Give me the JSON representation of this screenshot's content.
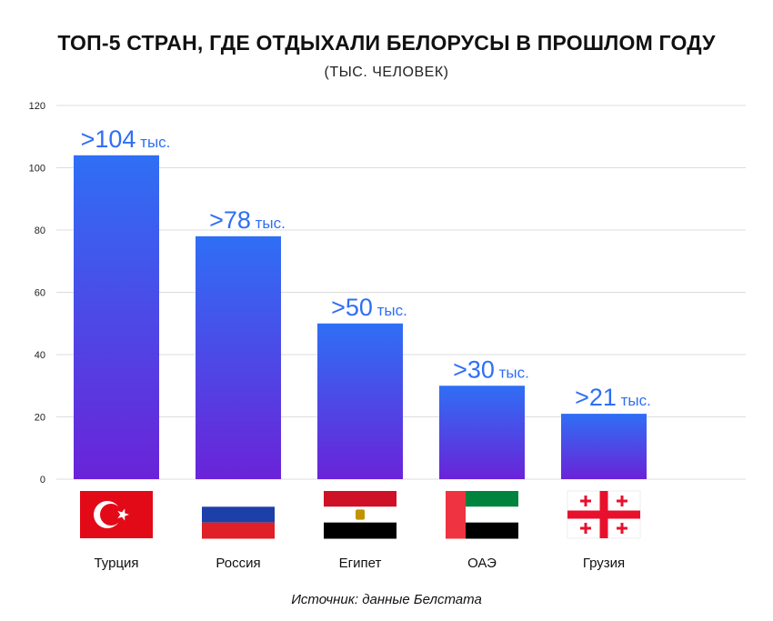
{
  "title": "ТОП-5 СТРАН, ГДЕ ОТДЫХАЛИ БЕЛОРУСЫ В ПРОШЛОМ ГОДУ",
  "subtitle": "(ТЫС. ЧЕЛОВЕК)",
  "source": "Источник: данные Белстата",
  "colors": {
    "bar_top": "#2f6ff5",
    "bar_bottom": "#6a23d8",
    "label": "#2f6ff5",
    "grid": "#dddddd",
    "axis_text": "#222222"
  },
  "chart_data": {
    "type": "bar",
    "title": "ТОП-5 СТРАН, ГДЕ ОТДЫХАЛИ БЕЛОРУСЫ В ПРОШЛОМ ГОДУ",
    "subtitle": "(ТЫС. ЧЕЛОВЕК)",
    "categories": [
      "Турция",
      "Россия",
      "Египет",
      "ОАЭ",
      "Грузия"
    ],
    "values": [
      104,
      78,
      50,
      30,
      21
    ],
    "data_labels": [
      ">104 тыс.",
      ">78 тыс.",
      ">50 тыс.",
      ">30 тыс.",
      ">21 тыс."
    ],
    "ylim": [
      0,
      120
    ],
    "yticks": [
      0,
      20,
      40,
      60,
      80,
      100,
      120
    ],
    "grid": true,
    "xlabel": "",
    "ylabel": ""
  },
  "flags": [
    "turkey-flag-icon",
    "russia-flag-icon",
    "egypt-flag-icon",
    "uae-flag-icon",
    "georgia-flag-icon"
  ]
}
